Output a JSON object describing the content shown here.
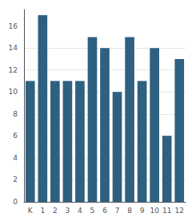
{
  "chart_data": {
    "type": "bar",
    "categories": [
      "K",
      "1",
      "2",
      "3",
      "4",
      "5",
      "6",
      "7",
      "8",
      "9",
      "10",
      "11",
      "12"
    ],
    "values": [
      11,
      17,
      11,
      11,
      11,
      15,
      14,
      10,
      15,
      11,
      14,
      6,
      13
    ],
    "color": "#2e6080",
    "ylim": [
      0,
      17.5
    ],
    "yticks": [
      0,
      2,
      4,
      6,
      8,
      10,
      12,
      14,
      16
    ],
    "grid": true
  }
}
